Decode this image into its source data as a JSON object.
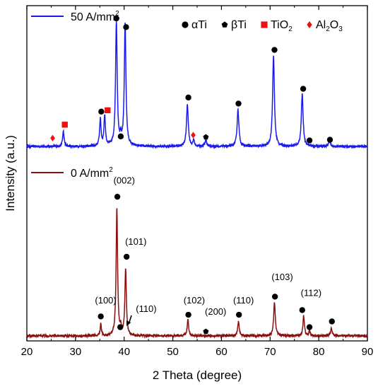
{
  "chart_data": {
    "type": "line",
    "xlabel": "2 Theta (degree)",
    "ylabel": "Intensity (a.u.)",
    "xlim": [
      20,
      90
    ],
    "ylim": [
      0,
      100
    ],
    "x_ticks": [
      20,
      30,
      40,
      50,
      60,
      70,
      80,
      90
    ],
    "grid": false,
    "legend_top_right": [
      {
        "symbol": "circle",
        "label_main": "αTi",
        "color": "#000000"
      },
      {
        "symbol": "pentagon",
        "label_main": "βTi",
        "color": "#000000"
      },
      {
        "symbol": "square",
        "label_main": "TiO",
        "label_sub": "2",
        "color": "#ee1111"
      },
      {
        "symbol": "diamond",
        "label_main": "Al",
        "label_sub": "2",
        "label_main2": "O",
        "label_sub2": "3",
        "color": "#ee1111"
      }
    ],
    "series": [
      {
        "name_main": "50 A/mm",
        "name_sup": "2",
        "color": "#1a1aee",
        "baseline": 58,
        "peaks": [
          {
            "x": 27.5,
            "h": 4.5,
            "w": 0.18
          },
          {
            "x": 35.1,
            "h": 8,
            "w": 0.18
          },
          {
            "x": 36.0,
            "h": 9,
            "w": 0.18
          },
          {
            "x": 38.4,
            "h": 37,
            "w": 0.2
          },
          {
            "x": 39.3,
            "h": 2,
            "w": 0.15
          },
          {
            "x": 40.2,
            "h": 36.5,
            "w": 0.2
          },
          {
            "x": 53.0,
            "h": 12.5,
            "w": 0.22
          },
          {
            "x": 54.3,
            "h": 2,
            "w": 0.15
          },
          {
            "x": 56.8,
            "h": 2,
            "w": 0.2
          },
          {
            "x": 63.4,
            "h": 11,
            "w": 0.22
          },
          {
            "x": 70.7,
            "h": 27,
            "w": 0.22
          },
          {
            "x": 76.6,
            "h": 15.5,
            "w": 0.22
          },
          {
            "x": 82.2,
            "h": 1.8,
            "w": 0.2
          }
        ],
        "markers": [
          {
            "x": 25.3,
            "y": 60.5,
            "symbol": "diamond",
            "color": "#ee1111"
          },
          {
            "x": 27.8,
            "y": 64.5,
            "symbol": "square",
            "color": "#ee1111"
          },
          {
            "x": 35.3,
            "y": 68.4,
            "symbol": "circle",
            "color": "#000000"
          },
          {
            "x": 36.6,
            "y": 68.8,
            "symbol": "square",
            "color": "#ee1111"
          },
          {
            "x": 38.4,
            "y": 96.2,
            "symbol": "circle",
            "color": "#000000"
          },
          {
            "x": 39.3,
            "y": 61.0,
            "symbol": "circle",
            "color": "#000000"
          },
          {
            "x": 40.4,
            "y": 93.6,
            "symbol": "circle",
            "color": "#000000"
          },
          {
            "x": 53.2,
            "y": 72.6,
            "symbol": "circle",
            "color": "#000000"
          },
          {
            "x": 54.2,
            "y": 61.4,
            "symbol": "diamond",
            "color": "#ee1111"
          },
          {
            "x": 56.8,
            "y": 60.8,
            "symbol": "pentagon",
            "color": "#000000"
          },
          {
            "x": 63.5,
            "y": 70.8,
            "symbol": "circle",
            "color": "#000000"
          },
          {
            "x": 70.9,
            "y": 86.8,
            "symbol": "circle",
            "color": "#000000"
          },
          {
            "x": 76.8,
            "y": 75.2,
            "symbol": "circle",
            "color": "#000000"
          },
          {
            "x": 78.1,
            "y": 59.8,
            "symbol": "circle",
            "color": "#000000"
          },
          {
            "x": 82.3,
            "y": 60.0,
            "symbol": "circle",
            "color": "#000000"
          }
        ]
      },
      {
        "name_main": "0 A/mm",
        "name_sup": "2",
        "color": "#8a1010",
        "baseline": 1.5,
        "peaks": [
          {
            "x": 35.2,
            "h": 3.5,
            "w": 0.15
          },
          {
            "x": 38.5,
            "h": 38,
            "w": 0.18
          },
          {
            "x": 39.3,
            "h": 2,
            "w": 0.15
          },
          {
            "x": 40.3,
            "h": 20,
            "w": 0.18
          },
          {
            "x": 53.1,
            "h": 5,
            "w": 0.18
          },
          {
            "x": 63.5,
            "h": 4.5,
            "w": 0.18
          },
          {
            "x": 70.9,
            "h": 10,
            "w": 0.2
          },
          {
            "x": 76.9,
            "h": 6,
            "w": 0.18
          },
          {
            "x": 78.1,
            "h": 1.5,
            "w": 0.15
          },
          {
            "x": 82.6,
            "h": 2.5,
            "w": 0.18
          }
        ],
        "markers": [
          {
            "x": 35.2,
            "y": 7.3,
            "symbol": "circle",
            "color": "#000000"
          },
          {
            "x": 38.6,
            "y": 43.0,
            "symbol": "circle",
            "color": "#000000"
          },
          {
            "x": 39.2,
            "y": 4.1,
            "symbol": "circle",
            "color": "#000000"
          },
          {
            "x": 40.5,
            "y": 25.1,
            "symbol": "circle",
            "color": "#000000"
          },
          {
            "x": 53.2,
            "y": 7.8,
            "symbol": "circle",
            "color": "#000000"
          },
          {
            "x": 56.8,
            "y": 2.8,
            "symbol": "pentagon",
            "color": "#000000"
          },
          {
            "x": 63.6,
            "y": 7.8,
            "symbol": "circle",
            "color": "#000000"
          },
          {
            "x": 71.0,
            "y": 13.2,
            "symbol": "circle",
            "color": "#000000"
          },
          {
            "x": 76.6,
            "y": 9.2,
            "symbol": "circle",
            "color": "#000000"
          },
          {
            "x": 78.1,
            "y": 4.1,
            "symbol": "circle",
            "color": "#000000"
          },
          {
            "x": 82.7,
            "y": 5.8,
            "symbol": "circle",
            "color": "#000000"
          }
        ],
        "annotations": [
          {
            "text": "(100)",
            "x": 34.0,
            "y": 11.2
          },
          {
            "text": "(002)",
            "x": 37.8,
            "y": 46.9
          },
          {
            "text": "(101)",
            "x": 40.2,
            "y": 28.7
          },
          {
            "text": "(110)",
            "x": 42.4,
            "y": 8.6
          },
          {
            "text": "(102)",
            "x": 52.2,
            "y": 11.2
          },
          {
            "text": "(200)",
            "x": 56.6,
            "y": 7.8
          },
          {
            "text": "(110)",
            "x": 62.4,
            "y": 11.2
          },
          {
            "text": "(103)",
            "x": 70.3,
            "y": 18.1
          },
          {
            "text": "(112)",
            "x": 76.3,
            "y": 13.4
          }
        ],
        "arrow": {
          "from_x": 41.5,
          "from_y": 7.6,
          "to_x": 40.5,
          "to_y": 4.4
        }
      }
    ]
  }
}
